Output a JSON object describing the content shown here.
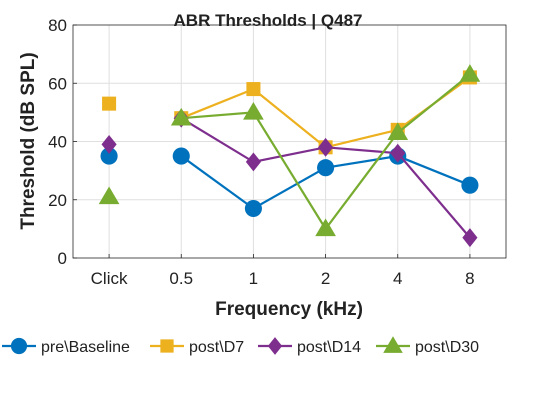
{
  "chart_data": {
    "type": "line",
    "title": "ABR Thresholds | Q487",
    "xlabel": "Frequency (kHz)",
    "ylabel": "Threshold (dB SPL)",
    "categories": [
      "Click",
      "0.5",
      "1",
      "2",
      "4",
      "8"
    ],
    "ylim": [
      0,
      80
    ],
    "yticks": [
      0,
      20,
      40,
      60,
      80
    ],
    "grid": true,
    "legend": "bottom",
    "series": [
      {
        "name": "pre\\Baseline",
        "color": "#0072BD",
        "marker": "circle",
        "values": [
          35,
          35,
          17,
          31,
          35,
          25
        ]
      },
      {
        "name": "post\\D7",
        "color": "#EDB120",
        "marker": "square",
        "values": [
          53,
          48,
          58,
          38,
          44,
          62
        ]
      },
      {
        "name": "post\\D14",
        "color": "#7E2F8E",
        "marker": "diamond",
        "values": [
          39,
          48,
          33,
          38,
          36,
          7
        ]
      },
      {
        "name": "post\\D30",
        "color": "#77AC30",
        "marker": "triangle",
        "values": [
          21,
          48,
          50,
          10,
          43,
          63
        ]
      }
    ]
  }
}
